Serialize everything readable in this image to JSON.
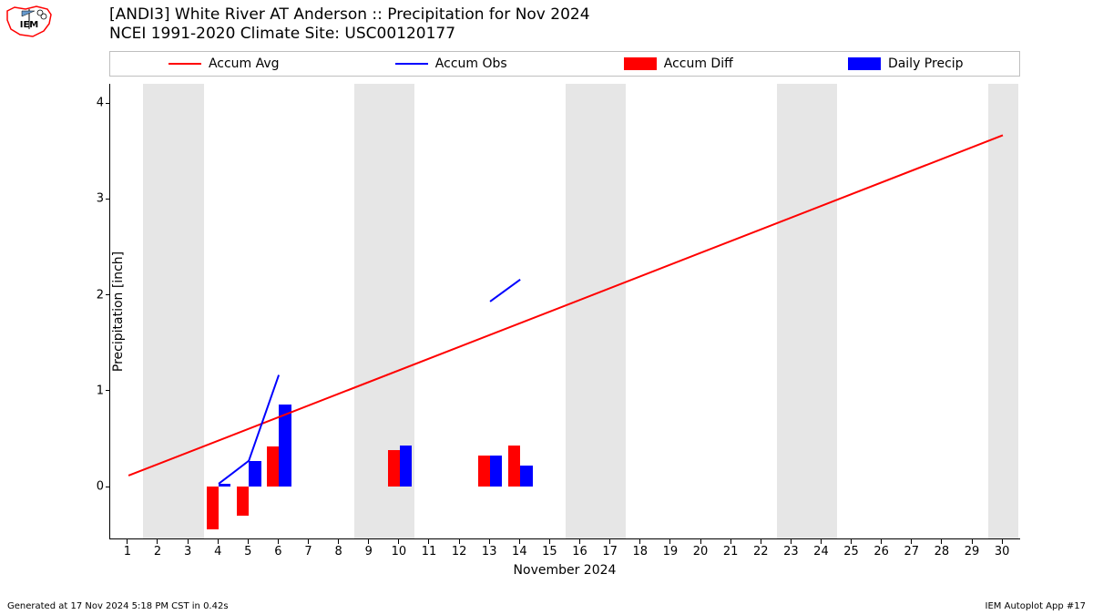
{
  "title_line1": "[ANDI3] White River  AT Anderson :: Precipitation for Nov 2024",
  "title_line2": "NCEI 1991-2020 Climate Site: USC00120177",
  "legend": {
    "accum_avg": {
      "label": "Accum Avg",
      "color": "#ff0000",
      "type": "line"
    },
    "accum_obs": {
      "label": "Accum Obs",
      "color": "#0000ff",
      "type": "line"
    },
    "accum_diff": {
      "label": "Accum Diff",
      "color": "#ff0000",
      "type": "rect"
    },
    "daily_precip": {
      "label": "Daily Precip",
      "color": "#0000ff",
      "type": "rect"
    }
  },
  "chart": {
    "type": "bar+line",
    "xlabel": "November 2024",
    "ylabel": "Precipitation [inch]",
    "xlim": [
      0.4,
      30.6
    ],
    "ylim": [
      -0.55,
      4.2
    ],
    "xticks": [
      1,
      2,
      3,
      4,
      5,
      6,
      7,
      8,
      9,
      10,
      11,
      12,
      13,
      14,
      15,
      16,
      17,
      18,
      19,
      20,
      21,
      22,
      23,
      24,
      25,
      26,
      27,
      28,
      29,
      30
    ],
    "yticks": [
      0,
      1,
      2,
      3,
      4
    ],
    "background_color": "#ffffff",
    "weekend_band_color": "#e6e6e6",
    "weekend_days": [
      2,
      3,
      9,
      10,
      16,
      17,
      23,
      24,
      30
    ],
    "accum_avg_line": {
      "color": "#ff0000",
      "width": 1.5,
      "points": [
        [
          1,
          0.12
        ],
        [
          30,
          3.67
        ]
      ]
    },
    "accum_obs_segments": [
      {
        "color": "#0000ff",
        "width": 1.8,
        "points": [
          [
            4,
            0.03
          ],
          [
            5,
            0.27
          ],
          [
            6,
            1.17
          ]
        ]
      },
      {
        "color": "#0000ff",
        "width": 1.8,
        "points": [
          [
            13,
            1.93
          ],
          [
            14,
            2.16
          ]
        ]
      }
    ],
    "bars": {
      "bar_width_days": 0.4,
      "accum_diff": {
        "color": "#ff0000",
        "data": [
          [
            4,
            -0.45
          ],
          [
            5,
            -0.3
          ],
          [
            6,
            0.42
          ],
          [
            10,
            0.38
          ],
          [
            13,
            0.32
          ],
          [
            14,
            0.43
          ]
        ]
      },
      "daily_precip": {
        "color": "#0000ff",
        "data": [
          [
            4,
            0.03
          ],
          [
            5,
            0.27
          ],
          [
            6,
            0.86
          ],
          [
            10,
            0.43
          ],
          [
            13,
            0.32
          ],
          [
            14,
            0.22
          ]
        ]
      }
    }
  },
  "footer_left": "Generated at 17 Nov 2024 5:18 PM CST in 0.42s",
  "footer_right": "IEM Autoplot App #17",
  "logo_colors": {
    "outline": "#ff0000",
    "vane": "#6699cc",
    "text": "#000000",
    "label": "IEM"
  }
}
